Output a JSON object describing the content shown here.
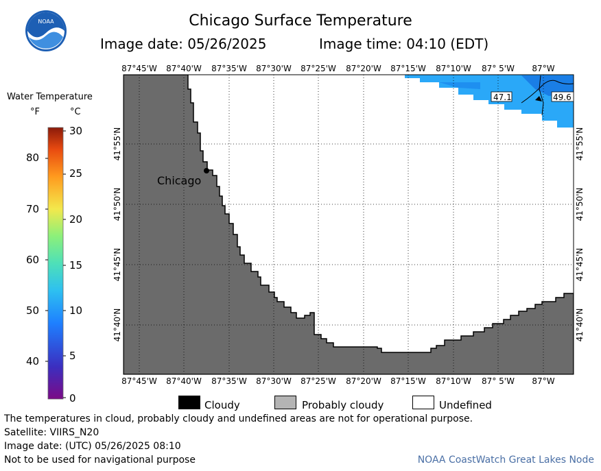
{
  "title": "Chicago Surface Temperature",
  "image_date": "Image date: 05/26/2025",
  "image_time": "Image time: 04:10 (EDT)",
  "logo": {
    "icon": "noaa-logo-icon",
    "text": "NOAA"
  },
  "legend": {
    "title": "Water Temperature",
    "unit_f": "°F",
    "unit_c": "°C",
    "f_ticks": [
      "80",
      "70",
      "60",
      "50",
      "40"
    ],
    "c_ticks": [
      "30",
      "25",
      "20",
      "15",
      "10",
      "5",
      "0"
    ],
    "range_f": [
      32,
      86
    ],
    "colors": [
      "#7b0a86",
      "#3b2fc0",
      "#1e80ff",
      "#2ec0f0",
      "#4ee0b8",
      "#8cf07a",
      "#f3e84c",
      "#ff9a1e",
      "#e84a10",
      "#8b1a0a"
    ]
  },
  "map": {
    "lon_labels": [
      "87°45'W",
      "87°40'W",
      "87°35'W",
      "87°30'W",
      "87°25'W",
      "87°20'W",
      "87°15'W",
      "87°10'W",
      "87° 5'W",
      "87°W"
    ],
    "lat_labels": [
      "41°55'N",
      "41°50'N",
      "41°45'N",
      "41°40'N"
    ],
    "city_label": "Chicago",
    "temp_labels": [
      "47.1",
      "49.6"
    ],
    "colors": {
      "land": "#6b6b6b",
      "water_undefined": "#ffffff",
      "sst_warm": "#2aa8f8",
      "sst_cool": "#1e8ff0"
    }
  },
  "key": {
    "cloudy": "Cloudy",
    "probably_cloudy": "Probably cloudy",
    "undefined": "Undefined",
    "colors": {
      "cloudy": "#000000",
      "probably_cloudy": "#b4b4b4",
      "undefined": "#ffffff"
    }
  },
  "footer": {
    "note": "The temperatures in cloud, probably cloudy and undefined areas are not for operational purpose.",
    "satellite": "Satellite: VIIRS_N20",
    "utc_date": "Image date: (UTC) 05/26/2025  08:10",
    "nav_warning": "Not to be used for navigational purpose",
    "credit": "NOAA CoastWatch Great Lakes Node"
  }
}
